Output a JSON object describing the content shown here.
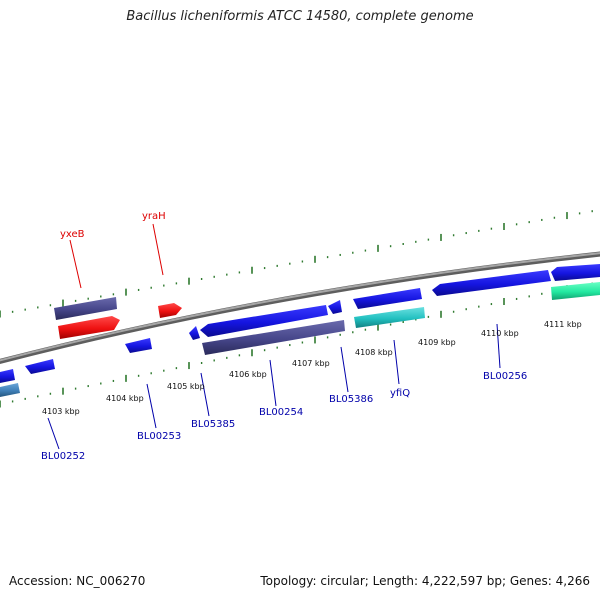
{
  "title": "Bacillus licheniformis ATCC 14580, complete genome",
  "footer": {
    "accession": "Accession: NC_006270",
    "topology": "Topology: circular; Length: 4,222,597 bp; Genes: 4,266"
  },
  "colors": {
    "backbone": "#8c8c8c",
    "tick": "#2f7a2f",
    "gene_blue": "#1515e0",
    "gene_slate": "#46468a",
    "gene_red": "#ee1111",
    "gene_cyan": "#22c0c0",
    "gene_green": "#22e8a0",
    "gene_steel": "#3f7fb8",
    "label_blue": "#0000aa",
    "label_red": "#dd0000"
  },
  "scale_labels": [
    "4103 kbp",
    "4104 kbp",
    "4105 kbp",
    "4106 kbp",
    "4107 kbp",
    "4108 kbp",
    "4109 kbp",
    "4110 kbp",
    "4111 kbp"
  ],
  "gene_labels": [
    {
      "name": "yxeB",
      "color": "red"
    },
    {
      "name": "yraH",
      "color": "red"
    },
    {
      "name": "BL00252",
      "color": "blue"
    },
    {
      "name": "BL00253",
      "color": "blue"
    },
    {
      "name": "BL05385",
      "color": "blue"
    },
    {
      "name": "BL00254",
      "color": "blue"
    },
    {
      "name": "BL05386",
      "color": "blue"
    },
    {
      "name": "yfiQ",
      "color": "blue"
    },
    {
      "name": "BL00256",
      "color": "blue"
    }
  ]
}
